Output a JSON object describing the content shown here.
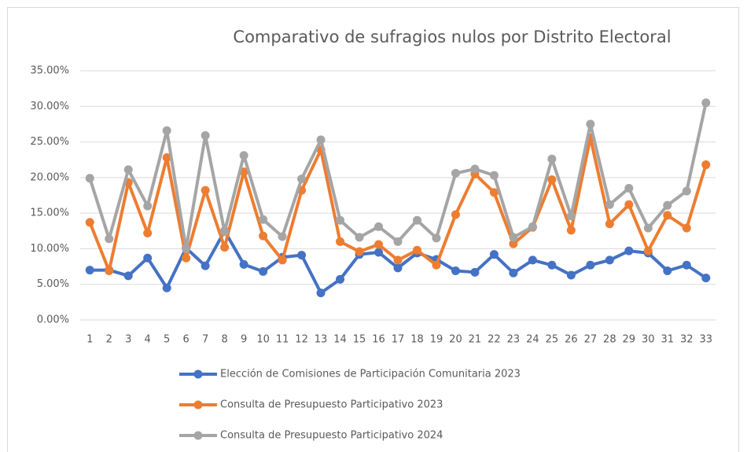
{
  "chart_data": {
    "type": "line",
    "title": "Comparativo de sufragios nulos por Distrito Electoral",
    "categories": [
      1,
      2,
      3,
      4,
      5,
      6,
      7,
      8,
      9,
      10,
      11,
      12,
      13,
      14,
      15,
      16,
      17,
      18,
      19,
      20,
      21,
      22,
      23,
      24,
      25,
      26,
      27,
      28,
      29,
      30,
      31,
      32,
      33
    ],
    "series": [
      {
        "name": "Elección de Comisiones de Participación Comunitaria 2023",
        "color": "#4472c4",
        "values": [
          7.0,
          7.0,
          6.2,
          8.7,
          4.5,
          10.1,
          7.6,
          12.5,
          7.8,
          6.8,
          8.8,
          9.1,
          3.8,
          5.7,
          9.2,
          9.5,
          7.3,
          9.4,
          8.5,
          6.9,
          6.7,
          9.2,
          6.6,
          8.4,
          7.7,
          6.3,
          7.7,
          8.4,
          9.7,
          9.4,
          6.9,
          7.7,
          5.9
        ]
      },
      {
        "name": "Consulta de Presupuesto Participativo 2023",
        "color": "#ed7d31",
        "values": [
          13.7,
          6.9,
          19.3,
          12.2,
          22.8,
          8.7,
          18.2,
          10.2,
          20.8,
          11.8,
          8.4,
          18.2,
          23.9,
          11.0,
          9.6,
          10.6,
          8.4,
          9.8,
          7.7,
          14.8,
          20.5,
          17.9,
          10.7,
          13.0,
          19.7,
          12.6,
          25.6,
          13.5,
          16.2,
          9.7,
          14.7,
          12.9,
          21.8
        ]
      },
      {
        "name": "Consulta de Presupuesto Participativo 2024",
        "color": "#a5a5a5",
        "values": [
          19.9,
          11.4,
          21.1,
          16.0,
          26.6,
          10.0,
          25.9,
          12.4,
          23.1,
          14.1,
          11.7,
          19.8,
          25.3,
          14.0,
          11.6,
          13.1,
          11.0,
          14.0,
          11.5,
          20.6,
          21.2,
          20.3,
          11.6,
          13.1,
          22.6,
          14.6,
          27.5,
          16.2,
          18.5,
          12.9,
          16.1,
          18.1,
          30.5
        ]
      }
    ],
    "ylim": [
      0,
      35
    ],
    "yticks": [
      {
        "value": 0,
        "label": "0.00%"
      },
      {
        "value": 5,
        "label": "5.00%"
      },
      {
        "value": 10,
        "label": "10.00%"
      },
      {
        "value": 15,
        "label": "15.00%"
      },
      {
        "value": 20,
        "label": "20.00%"
      },
      {
        "value": 25,
        "label": "25.00%"
      },
      {
        "value": 30,
        "label": "30.00%"
      },
      {
        "value": 35,
        "label": "35.00%"
      }
    ],
    "grid": true,
    "legend": "bottom"
  }
}
